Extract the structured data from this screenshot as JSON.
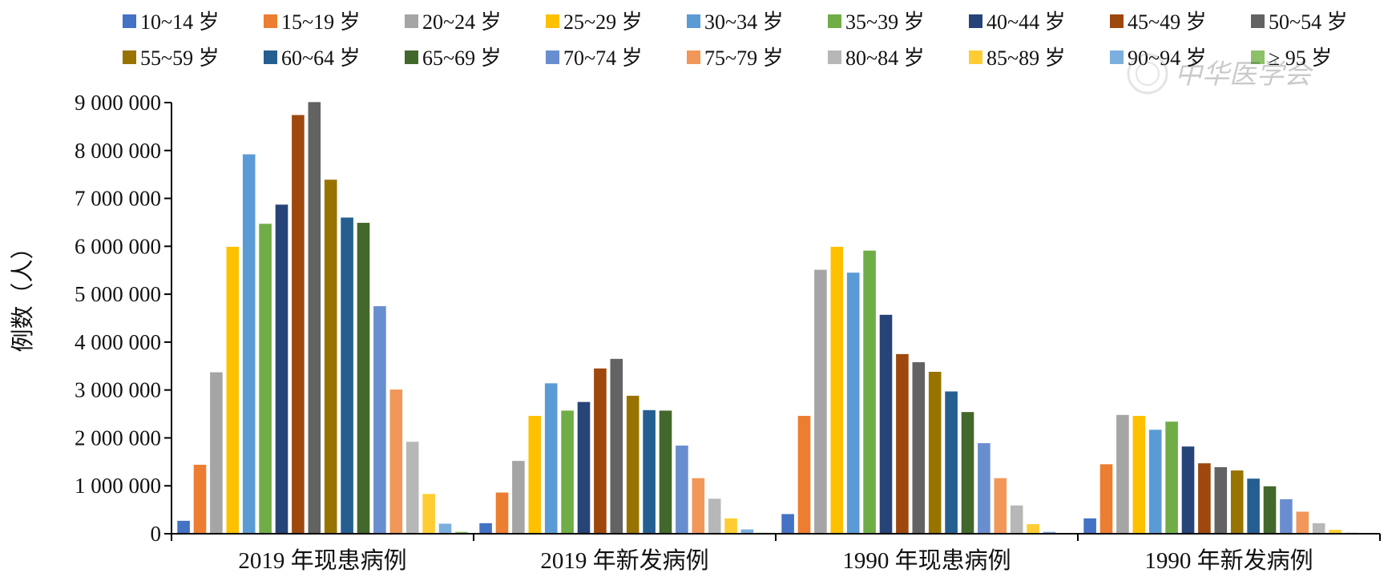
{
  "chart_data": {
    "type": "bar",
    "title": "",
    "xlabel": "",
    "ylabel": "例数（人）",
    "ylim": [
      0,
      9000000
    ],
    "yticks": [
      0,
      1000000,
      2000000,
      3000000,
      4000000,
      5000000,
      6000000,
      7000000,
      8000000,
      9000000
    ],
    "ytick_labels": [
      "0",
      "1 000 000",
      "2 000 000",
      "3 000 000",
      "4 000 000",
      "5 000 000",
      "6 000 000",
      "7 000 000",
      "8 000 000",
      "9 000 000"
    ],
    "categories": [
      "2019 年现患病例",
      "2019 年新发病例",
      "1990 年现患病例",
      "1990 年新发病例"
    ],
    "grid": false,
    "legend_position": "top",
    "series": [
      {
        "name": "10~14 岁",
        "color": "#4472C4",
        "values": [
          270000,
          220000,
          410000,
          320000
        ]
      },
      {
        "name": "15~19 岁",
        "color": "#ED7D31",
        "values": [
          1440000,
          860000,
          2460000,
          1450000
        ]
      },
      {
        "name": "20~24 岁",
        "color": "#A5A5A5",
        "values": [
          3370000,
          1520000,
          5510000,
          2480000
        ]
      },
      {
        "name": "25~29 岁",
        "color": "#FFC000",
        "values": [
          5990000,
          2460000,
          5990000,
          2460000
        ]
      },
      {
        "name": "30~34 岁",
        "color": "#5B9BD5",
        "values": [
          7920000,
          3140000,
          5450000,
          2170000
        ]
      },
      {
        "name": "35~39 岁",
        "color": "#70AD47",
        "values": [
          6470000,
          2570000,
          5910000,
          2340000
        ]
      },
      {
        "name": "40~44 岁",
        "color": "#264478",
        "values": [
          6870000,
          2750000,
          4570000,
          1820000
        ]
      },
      {
        "name": "45~49 岁",
        "color": "#9E480E",
        "values": [
          8740000,
          3450000,
          3750000,
          1470000
        ]
      },
      {
        "name": "50~54 岁",
        "color": "#636363",
        "values": [
          9010000,
          3650000,
          3580000,
          1390000
        ]
      },
      {
        "name": "55~59 岁",
        "color": "#997300",
        "values": [
          7390000,
          2880000,
          3380000,
          1320000
        ]
      },
      {
        "name": "60~64 岁",
        "color": "#255E91",
        "values": [
          6600000,
          2580000,
          2970000,
          1150000
        ]
      },
      {
        "name": "65~69 岁",
        "color": "#43682B",
        "values": [
          6490000,
          2570000,
          2540000,
          990000
        ]
      },
      {
        "name": "70~74 岁",
        "color": "#698ED0",
        "values": [
          4750000,
          1840000,
          1890000,
          720000
        ]
      },
      {
        "name": "75~79 岁",
        "color": "#F1975A",
        "values": [
          3010000,
          1160000,
          1160000,
          460000
        ]
      },
      {
        "name": "80~84 岁",
        "color": "#B7B7B7",
        "values": [
          1920000,
          730000,
          590000,
          220000
        ]
      },
      {
        "name": "85~89 岁",
        "color": "#FFCD33",
        "values": [
          830000,
          320000,
          200000,
          80000
        ]
      },
      {
        "name": "90~94 岁",
        "color": "#7CAFDD",
        "values": [
          210000,
          90000,
          40000,
          20000
        ]
      },
      {
        "name": "≥ 95 岁",
        "color": "#8CC168",
        "values": [
          40000,
          20000,
          10000,
          5000
        ]
      }
    ]
  },
  "watermark": {
    "text": "中华医学会"
  }
}
